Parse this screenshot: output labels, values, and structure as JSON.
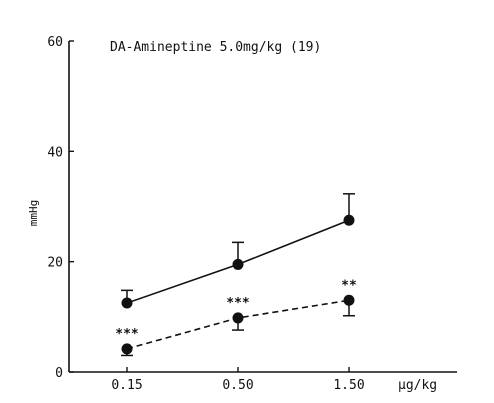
{
  "chart_data": {
    "type": "line",
    "title": "DA-Amineptine 5.0mg/kg (19)",
    "ylabel": "mmHg",
    "xunit": "µg/kg",
    "categories": [
      "0.15",
      "0.50",
      "1.50"
    ],
    "ylim": [
      0,
      60
    ],
    "yticks": [
      0,
      20,
      40,
      60
    ],
    "grid": false,
    "series": [
      {
        "style": "solid",
        "values": [
          12.5,
          19.5,
          27.5
        ],
        "error": [
          2.3,
          4.0,
          4.8
        ],
        "error_direction": "up",
        "significance": [
          "",
          "",
          ""
        ]
      },
      {
        "style": "dashed",
        "values": [
          4.2,
          9.8,
          13.0
        ],
        "error": [
          1.2,
          2.2,
          2.8
        ],
        "error_direction": "down",
        "significance": [
          "***",
          "***",
          "**"
        ]
      }
    ]
  }
}
